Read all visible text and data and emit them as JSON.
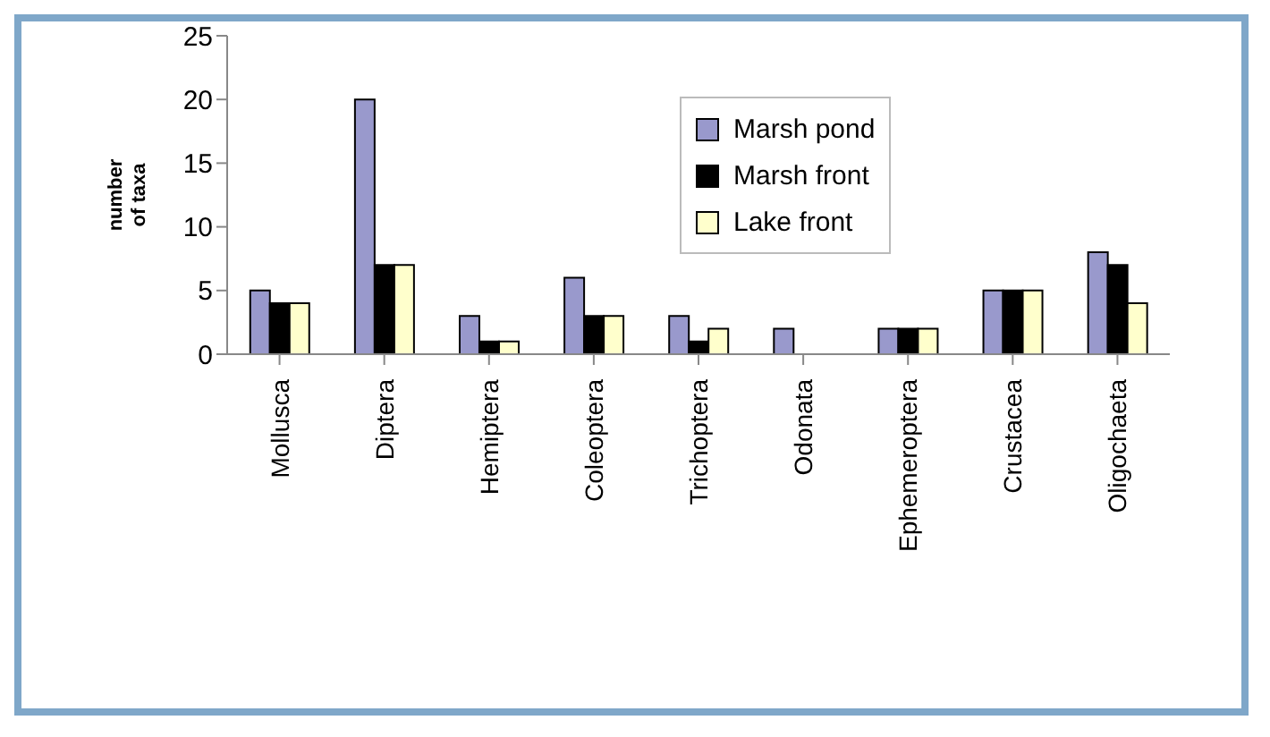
{
  "chart_data": {
    "type": "bar",
    "ylabel": "number\nof taxa",
    "categories": [
      "Mollusca",
      "Diptera",
      "Hemiptera",
      "Coleoptera",
      "Trichoptera",
      "Odonata",
      "Ephemeroptera",
      "Crustacea",
      "Oligochaeta"
    ],
    "series": [
      {
        "name": "Marsh pond",
        "color": "#9999cc",
        "values": [
          5,
          20,
          3,
          6,
          3,
          2,
          2,
          5,
          8
        ]
      },
      {
        "name": "Marsh front",
        "color": "#000000",
        "values": [
          4,
          7,
          1,
          3,
          1,
          0,
          2,
          5,
          7
        ]
      },
      {
        "name": "Lake front",
        "color": "#ffffcc",
        "values": [
          4,
          7,
          1,
          3,
          2,
          0,
          2,
          5,
          4
        ]
      }
    ],
    "ylim": [
      0,
      25
    ],
    "yticks": [
      0,
      5,
      10,
      15,
      20,
      25
    ],
    "grid": false,
    "legend": "top right"
  }
}
